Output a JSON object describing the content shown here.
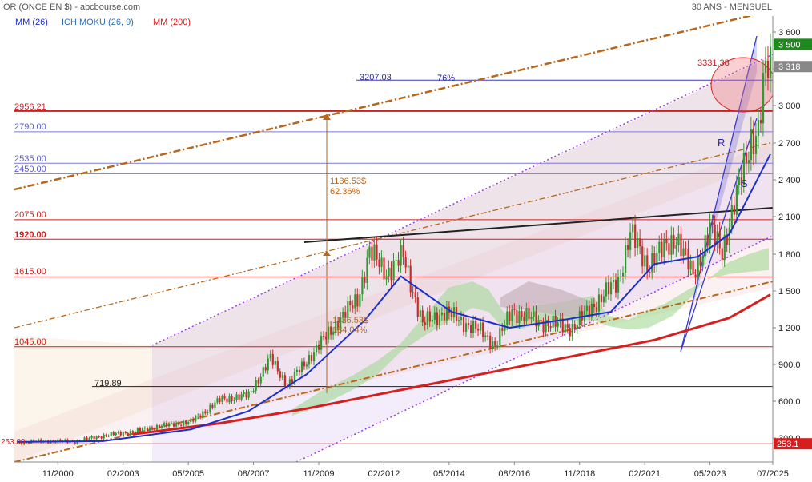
{
  "header": {
    "instrument": "OR (ONCE EN $) - abcbourse.com",
    "period": "30 ANS - MENSUEL"
  },
  "legend": [
    {
      "label": "MM (26)",
      "color": "#1a2fd0"
    },
    {
      "label": "ICHIMOKU (26, 9)",
      "color": "#2f6fb5"
    },
    {
      "label": "MM (200)",
      "color": "#d62020"
    }
  ],
  "colors": {
    "price_up": "#2f9a2f",
    "price_down": "#cc2b2b",
    "mm26": "#1a2fd0",
    "mm200": "#d62020",
    "kumo": "#9bd68b",
    "channel_main": "#b8661a",
    "channel_violet": "#9b3ce0",
    "trend_black": "#222222",
    "current_price_tag": "#888888",
    "resistance_tag": "#1e8a1e",
    "low_tag": "#d61e1e"
  },
  "chart_data": {
    "type": "line",
    "title": "OR (ONCE EN $)",
    "x_tick_labels": [
      "11/2000",
      "02/2003",
      "05/2005",
      "08/2007",
      "11/2009",
      "02/2012",
      "05/2014",
      "08/2016",
      "11/2018",
      "02/2021",
      "05/2023",
      "07/2025"
    ],
    "y_tick_labels": [
      "3 600",
      "3 300",
      "3 000",
      "2 700",
      "2 400",
      "2 100",
      "1 800",
      "1 500",
      "1 200",
      "900.0",
      "600.0",
      "300.0"
    ],
    "ylim": [
      250,
      3700
    ],
    "xlim": [
      "1999-05",
      "2025-07"
    ],
    "legend_position": "top-left",
    "grid": false,
    "series": [
      {
        "name": "OR (ONCE EN $)",
        "x": [
          "1999-06",
          "2000-06",
          "2001-06",
          "2002-06",
          "2003-06",
          "2004-06",
          "2005-06",
          "2006-06",
          "2007-06",
          "2008-03",
          "2008-10",
          "2009-06",
          "2010-06",
          "2011-03",
          "2011-08",
          "2012-03",
          "2012-10",
          "2013-06",
          "2014-03",
          "2015-06",
          "2015-12",
          "2016-07",
          "2017-06",
          "2018-08",
          "2019-06",
          "2020-03",
          "2020-08",
          "2021-03",
          "2022-03",
          "2022-10",
          "2023-05",
          "2023-10",
          "2024-05",
          "2024-10",
          "2025-01",
          "2025-04",
          "2025-06"
        ],
        "values": [
          262,
          275,
          270,
          320,
          350,
          400,
          430,
          610,
          650,
          950,
          730,
          930,
          1230,
          1430,
          1820,
          1650,
          1780,
          1230,
          1330,
          1170,
          1060,
          1340,
          1250,
          1200,
          1410,
          1580,
          1970,
          1710,
          1940,
          1630,
          1990,
          1830,
          2340,
          2740,
          2800,
          3280,
          3318
        ]
      },
      {
        "name": "MM (26)",
        "x": [
          "1999-06",
          "2002-06",
          "2005-06",
          "2007-06",
          "2009-06",
          "2011-06",
          "2012-09",
          "2014-06",
          "2016-06",
          "2018-06",
          "2019-12",
          "2021-06",
          "2022-12",
          "2024-01",
          "2025-06"
        ],
        "values": [
          268,
          275,
          370,
          520,
          820,
          1260,
          1620,
          1330,
          1200,
          1270,
          1330,
          1720,
          1780,
          1960,
          2610
        ]
      },
      {
        "name": "MM (200)",
        "x": [
          "2003-06",
          "2006-06",
          "2009-06",
          "2012-06",
          "2015-06",
          "2018-06",
          "2021-06",
          "2024-01",
          "2025-06"
        ],
        "values": [
          330,
          420,
          540,
          680,
          820,
          960,
          1100,
          1280,
          1470
        ]
      }
    ],
    "annotations": [
      {
        "text": "3207.03",
        "value": 3207.03
      },
      {
        "text": "76%"
      },
      {
        "text": "3331.38",
        "value": 3331.38
      },
      {
        "text": "2956.21",
        "value": 2956.21
      },
      {
        "text": "2790.00",
        "value": 2790.0
      },
      {
        "text": "2535.00",
        "value": 2535.0
      },
      {
        "text": "2450.00",
        "value": 2450.0
      },
      {
        "text": "2075.00",
        "value": 2075.0
      },
      {
        "text": "1920.00",
        "value": 1920.0
      },
      {
        "text": "1615.00",
        "value": 1615.0
      },
      {
        "text": "1045.00",
        "value": 1045.0
      },
      {
        "text": "719.89",
        "value": 719.89
      },
      {
        "text": "253.00",
        "value": 253.0
      },
      {
        "text": "1136.53$"
      },
      {
        "text": "62.36%"
      },
      {
        "text": "1136.53$"
      },
      {
        "text": "184.04%"
      },
      {
        "text": "R"
      },
      {
        "text": "S"
      }
    ],
    "right_axis_tags": [
      {
        "text": "3 500",
        "value": 3500,
        "role": "resistance"
      },
      {
        "text": "3 318",
        "value": 3318,
        "role": "last_price"
      },
      {
        "text": "253.1",
        "value": 253.1,
        "role": "low"
      }
    ]
  }
}
